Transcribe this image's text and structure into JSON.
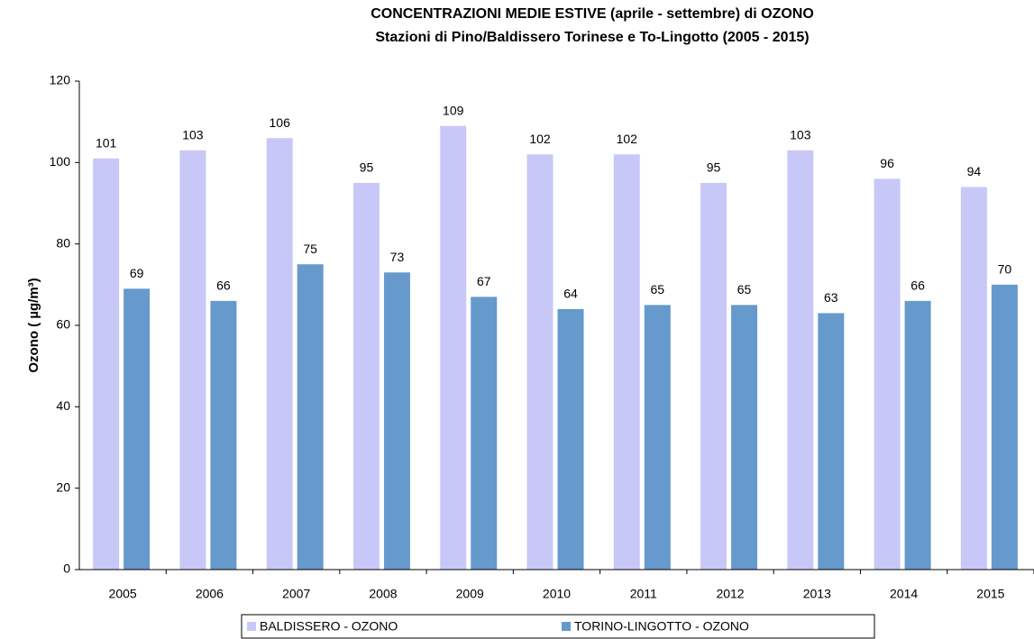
{
  "chart_data": {
    "type": "bar",
    "title": "CONCENTRAZIONI MEDIE ESTIVE (aprile - settembre) di OZONO",
    "subtitle": "Stazioni di Pino/Baldissero Torinese e To-Lingotto (2005 - 2015)",
    "y_label": "Ozono ( µg/m³)",
    "categories": [
      "2005",
      "2006",
      "2007",
      "2008",
      "2009",
      "2010",
      "2011",
      "2012",
      "2013",
      "2014",
      "2015"
    ],
    "series": [
      {
        "name": "BALDISSERO - OZONO",
        "color": "#c8c8f8",
        "values": [
          101,
          103,
          106,
          95,
          109,
          102,
          102,
          95,
          103,
          96,
          94
        ]
      },
      {
        "name": "TORINO-LINGOTTO - OZONO",
        "color": "#6699cc",
        "values": [
          69,
          66,
          75,
          73,
          67,
          64,
          65,
          65,
          63,
          66,
          70
        ]
      }
    ],
    "ylim": [
      0,
      120
    ],
    "yticks": [
      0,
      20,
      40,
      60,
      80,
      100,
      120
    ],
    "grid": false,
    "legend": "bottom"
  }
}
